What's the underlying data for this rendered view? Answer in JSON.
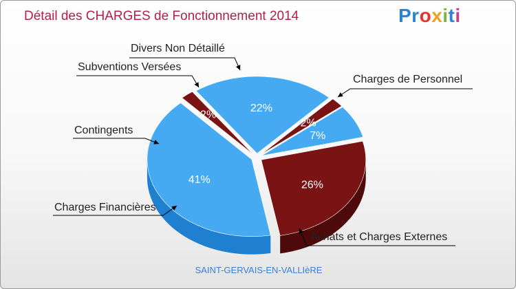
{
  "title": "Détail des CHARGES de Fonctionnement 2014",
  "brand": {
    "parts": [
      "Pr",
      "o",
      "x",
      "i",
      "t",
      "i"
    ]
  },
  "commune": "SAINT-GERVAIS-EN-VALLIèRE",
  "colors": {
    "title": "#b0204a",
    "blue": "#45aaf2",
    "blue_side": "#1f7fd0",
    "red": "#7a1313",
    "red_side": "#4e0a0a",
    "commune": "#3d7fd6"
  },
  "chart_data": {
    "type": "pie",
    "title": "Détail des CHARGES de Fonctionnement 2014",
    "slices": [
      {
        "label": "Charges de Personnel",
        "value": 26,
        "display": "26%",
        "color": "red"
      },
      {
        "label": "Achats et Charges Externes",
        "value": 41,
        "display": "41%",
        "color": "blue"
      },
      {
        "label": "Charges Financières",
        "value": 2,
        "display": "2%",
        "color": "red"
      },
      {
        "label": "Contingents",
        "value": 22,
        "display": "22%",
        "color": "blue"
      },
      {
        "label": "Subventions Versées",
        "value": 2,
        "display": "2%",
        "color": "red"
      },
      {
        "label": "Divers Non Détaillé",
        "value": 7,
        "display": "7%",
        "color": "blue"
      }
    ]
  }
}
